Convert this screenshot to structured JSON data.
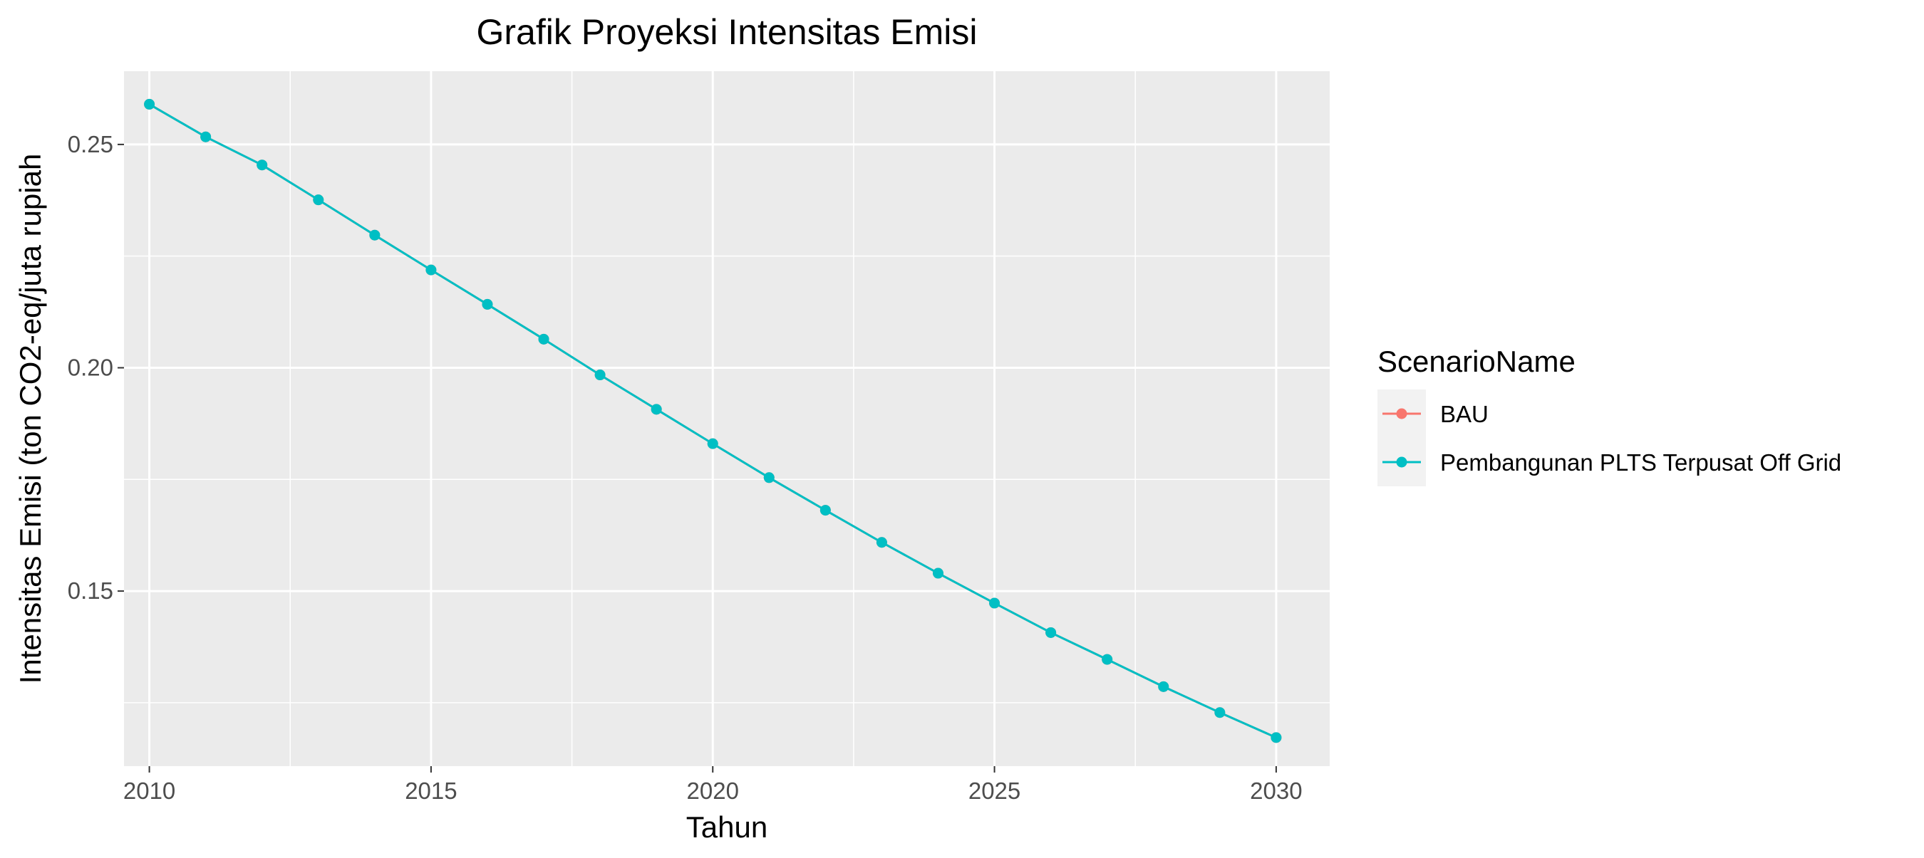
{
  "chart_data": {
    "type": "line",
    "title": "Grafik Proyeksi Intensitas Emisi",
    "xlabel": "Tahun",
    "ylabel": "Intensitas Emisi (ton CO2-eq/juta rupiah",
    "xlim": [
      2009.55,
      2030.95
    ],
    "ylim": [
      0.1108,
      0.2664
    ],
    "x_ticks": [
      2010,
      2015,
      2020,
      2025,
      2030
    ],
    "x_tick_labels": [
      "2010",
      "2015",
      "2020",
      "2025",
      "2030"
    ],
    "y_ticks": [
      0.15,
      0.2,
      0.25
    ],
    "y_tick_labels": [
      "0.15",
      "0.20",
      "0.25"
    ],
    "grid": true,
    "legend": {
      "title": "ScenarioName",
      "placement": "right"
    },
    "x": [
      2010,
      2011,
      2012,
      2013,
      2014,
      2015,
      2016,
      2017,
      2018,
      2019,
      2020,
      2021,
      2022,
      2023,
      2024,
      2025,
      2026,
      2027,
      2028,
      2029,
      2030
    ],
    "series": [
      {
        "name": "BAU",
        "color": "#f8766d",
        "values": [
          0.259,
          0.2517,
          0.2454,
          0.2376,
          0.2297,
          0.2219,
          0.2142,
          0.2064,
          0.1984,
          0.1907,
          0.183,
          0.1754,
          0.1681,
          0.1609,
          0.154,
          0.1473,
          0.1407,
          0.1347,
          0.1286,
          0.1228,
          0.1172
        ]
      },
      {
        "name": "Pembangunan PLTS Terpusat Off Grid",
        "color": "#00bfc4",
        "values": [
          0.259,
          0.2517,
          0.2454,
          0.2376,
          0.2297,
          0.2219,
          0.2142,
          0.2064,
          0.1984,
          0.1907,
          0.183,
          0.1754,
          0.1681,
          0.1609,
          0.154,
          0.1473,
          0.1407,
          0.1347,
          0.1286,
          0.1228,
          0.1172
        ]
      }
    ]
  }
}
